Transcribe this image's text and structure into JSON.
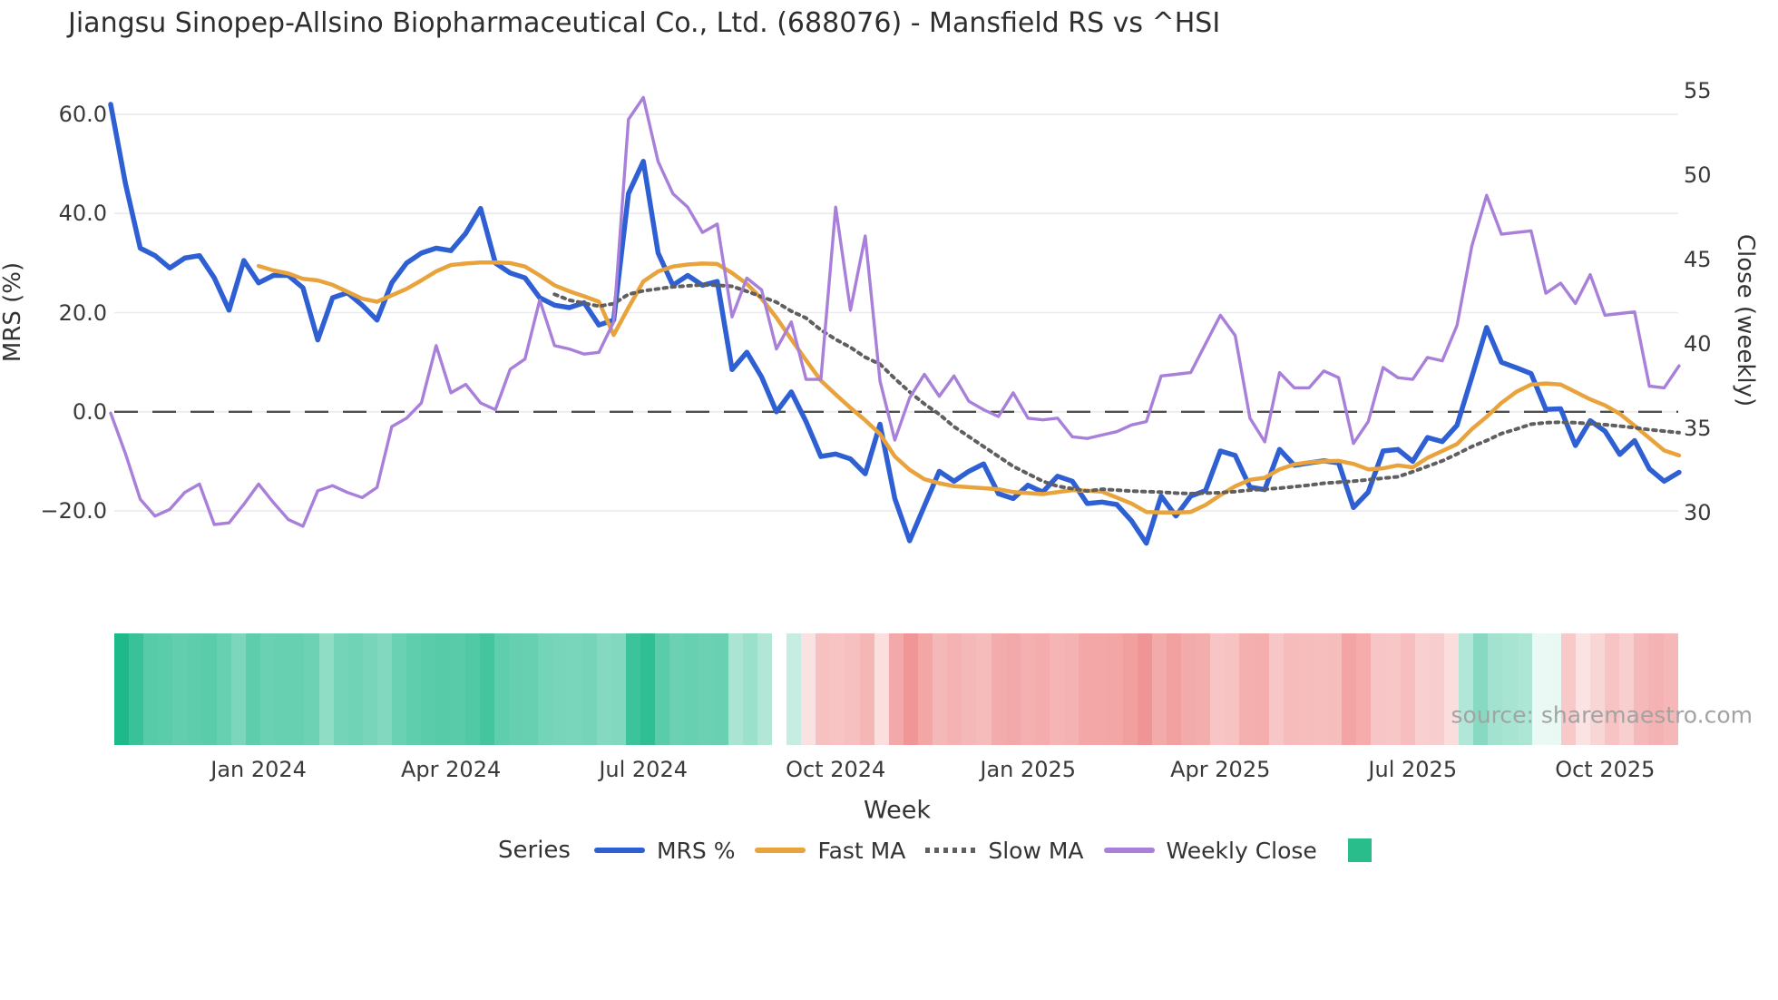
{
  "title": "Jiangsu Sinopep-Allsino Biopharmaceutical Co., Ltd. (688076) - Mansfield RS vs ^HSI",
  "watermark": "source: sharemaestro.com",
  "legend": {
    "title": "Series",
    "heatmap_swatch_color": "#2abd8c"
  },
  "chart_data": {
    "type": "line",
    "title": "Jiangsu Sinopep-Allsino Biopharmaceutical Co., Ltd. (688076) - Mansfield RS vs ^HSI",
    "xlabel": "Week",
    "ylabel_left": "MRS (%)",
    "ylabel_right": "Close (weekly)",
    "grid": true,
    "legend_position": "bottom",
    "x_tick_labels": [
      "Jan 2024",
      "Apr 2024",
      "Jul 2024",
      "Oct 2024",
      "Jan 2025",
      "Apr 2025",
      "Jul 2025",
      "Oct 2025"
    ],
    "x_tick_week_index": [
      10,
      23,
      36,
      49,
      62,
      75,
      88,
      101
    ],
    "n_weeks": 107,
    "left_axis": {
      "tick_labels": [
        "60.0",
        "40.0",
        "20.0",
        "0.0",
        "−20.0"
      ],
      "ticks": [
        60,
        40,
        20,
        0,
        -20
      ],
      "range": [
        -34,
        67
      ]
    },
    "right_axis": {
      "tick_labels": [
        "55",
        "50",
        "45",
        "40",
        "35",
        "30"
      ],
      "ticks": [
        55,
        50,
        45,
        40,
        35,
        30
      ],
      "range": [
        26,
        56
      ]
    },
    "zero_line": 0,
    "series": [
      {
        "name": "MRS %",
        "axis": "left",
        "style": "solid",
        "color": "#2e5fd3",
        "width": 5.5,
        "values": [
          62,
          46,
          33,
          31.5,
          29,
          31,
          31.5,
          27,
          20.5,
          30.5,
          26,
          27.5,
          27.5,
          25,
          14.5,
          23,
          24,
          21.5,
          18.5,
          26,
          30,
          32,
          33,
          32.5,
          36,
          41,
          30,
          28,
          27,
          23,
          21.5,
          21,
          22,
          17.5,
          18.5,
          44,
          50.5,
          32,
          25.5,
          27.5,
          25.5,
          26.3,
          8.5,
          12,
          7,
          0,
          4,
          -2,
          -9,
          -8.5,
          -9.5,
          -12.5,
          -2.5,
          -17.5,
          -26,
          -19,
          -12,
          -14,
          -12,
          -10.5,
          -16.5,
          -17.5,
          -14.8,
          -16.2,
          -13,
          -14,
          -18.5,
          -18.2,
          -18.7,
          -22,
          -26.5,
          -17,
          -21,
          -17,
          -15.9,
          -7.9,
          -8.8,
          -15.2,
          -15.7,
          -7.6,
          -10.8,
          -10.3,
          -9.9,
          -10.3,
          -19.3,
          -16.2,
          -7.9,
          -7.6,
          -10,
          -5.2,
          -6,
          -2.7,
          7,
          17,
          10,
          8.9,
          7.7,
          0.5,
          0.6,
          -6.8,
          -1.8,
          -3.9,
          -8.6,
          -5.8,
          -11.5,
          -14,
          -12.2
        ]
      },
      {
        "name": "Fast MA",
        "axis": "left",
        "style": "solid",
        "color": "#e8a33c",
        "width": 4.5,
        "values": [
          null,
          null,
          null,
          null,
          null,
          null,
          null,
          null,
          null,
          null,
          29.4,
          28.5,
          27.9,
          26.8,
          26.5,
          25.6,
          24.2,
          22.8,
          22.2,
          23.5,
          24.8,
          26.5,
          28.3,
          29.6,
          29.9,
          30.1,
          30.1,
          30,
          29.3,
          27.5,
          25.5,
          24.3,
          23.3,
          22.2,
          15.5,
          21,
          26.3,
          28.3,
          29.3,
          29.7,
          29.9,
          29.8,
          28,
          25.8,
          22.8,
          19,
          14.6,
          10.4,
          6.3,
          3.5,
          0.8,
          -1.7,
          -4.5,
          -9,
          -11.7,
          -13.6,
          -14.4,
          -15,
          -15.2,
          -15.4,
          -15.6,
          -16.2,
          -16.4,
          -16.6,
          -16.2,
          -15.8,
          -15.9,
          -16.1,
          -17.3,
          -18.5,
          -20.2,
          -20.3,
          -20.3,
          -20.2,
          -18.8,
          -16.8,
          -15,
          -13.7,
          -13.3,
          -11.6,
          -10.6,
          -10.2,
          -10,
          -9.9,
          -10.5,
          -11.6,
          -11.4,
          -10.8,
          -11.2,
          -9.3,
          -7.9,
          -6.5,
          -3.5,
          -1,
          1.8,
          4,
          5.5,
          5.7,
          5.5,
          4,
          2.5,
          1.3,
          -0.4,
          -2.8,
          -5.3,
          -7.8,
          -8.8
        ]
      },
      {
        "name": "Slow MA",
        "axis": "left",
        "style": "dotted",
        "color": "#5f5f5f",
        "width": 4,
        "values": [
          null,
          null,
          null,
          null,
          null,
          null,
          null,
          null,
          null,
          null,
          null,
          null,
          null,
          null,
          null,
          null,
          null,
          null,
          null,
          null,
          null,
          null,
          null,
          null,
          null,
          null,
          null,
          null,
          null,
          null,
          23.7,
          22.5,
          21.9,
          21.3,
          21.8,
          23.7,
          24.4,
          24.8,
          25.2,
          25.4,
          25.6,
          25.5,
          25.3,
          24.3,
          23.2,
          22.1,
          20.3,
          18.9,
          16.5,
          14.6,
          13,
          11,
          9.6,
          6.7,
          4,
          1.6,
          -0.5,
          -3,
          -5,
          -7,
          -9,
          -11,
          -12.5,
          -14,
          -15,
          -15.5,
          -16,
          -15.6,
          -15.8,
          -16,
          -16.1,
          -16.2,
          -16.4,
          -16.5,
          -16.4,
          -16.3,
          -16.1,
          -15.8,
          -15.6,
          -15.4,
          -15.1,
          -14.8,
          -14.4,
          -14.2,
          -14,
          -13.7,
          -13.4,
          -13.1,
          -12.1,
          -11,
          -9.9,
          -8.5,
          -7,
          -5.8,
          -4.4,
          -3.5,
          -2.5,
          -2.2,
          -2.1,
          -2.2,
          -2.4,
          -2.6,
          -2.9,
          -3.2,
          -3.6,
          -3.9,
          -4.2
        ]
      },
      {
        "name": "Weekly Close",
        "axis": "right",
        "style": "solid",
        "color": "#a87fd9",
        "width": 3.4,
        "values": [
          35.9,
          33.5,
          30.8,
          29.8,
          30.2,
          31.2,
          31.7,
          29.3,
          29.4,
          30.5,
          31.7,
          30.6,
          29.6,
          29.2,
          31.3,
          31.6,
          31.2,
          30.9,
          31.5,
          35.1,
          35.6,
          36.5,
          39.9,
          37.1,
          37.6,
          36.5,
          36.1,
          38.5,
          39.1,
          42.6,
          39.9,
          39.7,
          39.4,
          39.5,
          41.3,
          53.3,
          54.6,
          50.8,
          48.9,
          48.1,
          46.6,
          47.1,
          41.6,
          43.9,
          43.2,
          39.7,
          41.3,
          37.9,
          37.9,
          48.1,
          42,
          46.4,
          37.8,
          34.3,
          36.8,
          38.2,
          36.9,
          38.1,
          36.6,
          36.1,
          35.7,
          37.1,
          35.6,
          35.5,
          35.6,
          34.5,
          34.4,
          34.6,
          34.8,
          35.2,
          35.4,
          38.1,
          38.2,
          38.3,
          40,
          41.7,
          40.5,
          35.6,
          34.2,
          38.3,
          37.4,
          37.4,
          38.4,
          38,
          34.1,
          35.4,
          38.6,
          38,
          37.9,
          39.2,
          39,
          41.1,
          45.8,
          48.8,
          46.5,
          46.6,
          46.7,
          43,
          43.6,
          42.4,
          44.1,
          41.7,
          41.8,
          41.9,
          37.5,
          37.4,
          38.7
        ]
      }
    ],
    "heatmap": {
      "source_series": "MRS %",
      "rule": "green when MRS >= 0, red when MRS < 0, intensity proportional to |MRS|",
      "positive_color": "#1db98a",
      "negative_color": "#e96060"
    }
  }
}
